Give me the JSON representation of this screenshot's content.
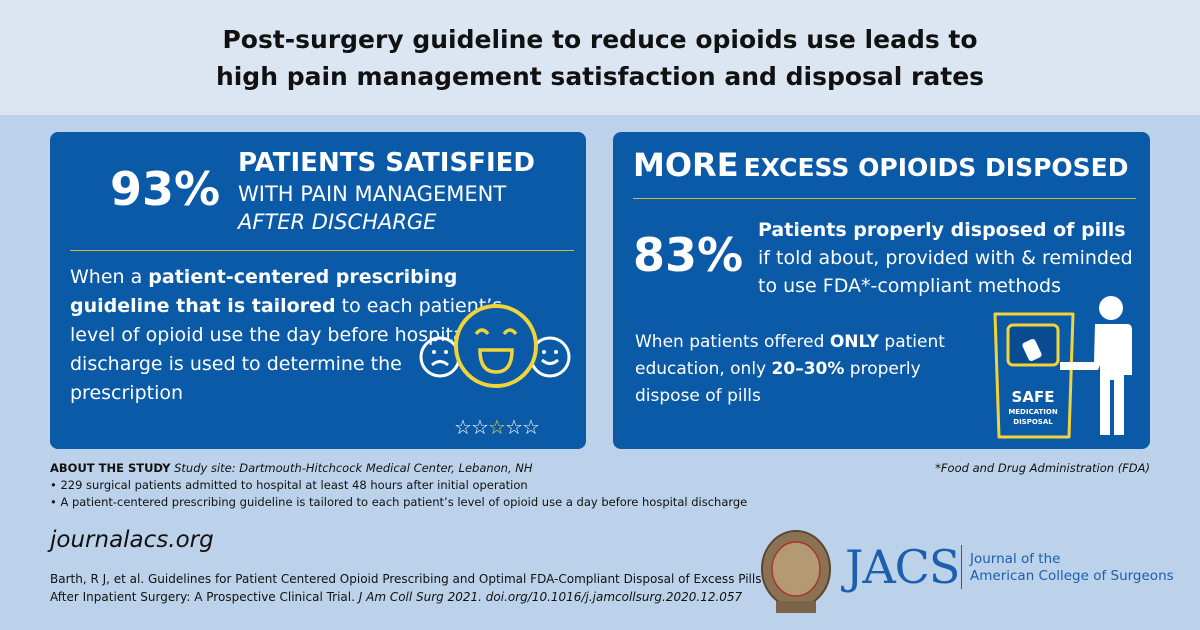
{
  "title": "Post-surgery guideline to reduce opioids use leads to high pain management satisfaction and disposal rates",
  "left_card": {
    "percent": "93%",
    "headline": "PATIENTS SATISFIED",
    "line2": "WITH PAIN MANAGEMENT",
    "line3": "AFTER DISCHARGE",
    "body_pre": "When a ",
    "body_bold": "patient-centered prescribing guideline that is tailored",
    "body_post": " to each patient’s level of opioid use the day before hospital discharge is used to determine the prescription",
    "rating": {
      "stars": 5,
      "highlighted_star": 3
    }
  },
  "right_card": {
    "headline_big": "MORE",
    "headline_rest": "EXCESS OPIOIDS DISPOSED",
    "percent": "83%",
    "sub_bold": "Patients properly disposed of pills",
    "sub_rest": "if told about, provided with & reminded to use FDA*-compliant methods",
    "body_1": "When patients offered ",
    "body_2": "ONLY",
    "body_3": " patient education, only ",
    "body_4": "20–30%",
    "body_5": " properly dispose of pills",
    "bin_line1": "SAFE",
    "bin_line2": "MEDICATION",
    "bin_line3": "DISPOSAL"
  },
  "study": {
    "label": "ABOUT THE STUDY",
    "site": "Study site: Dartmouth-Hitchcock Medical Center, Lebanon, NH",
    "bullets": [
      "• 229 surgical patients admitted to hospital at least 48 hours after initial operation",
      "• A patient-centered prescribing guideline is tailored to each patient’s level of opioid use a day before hospital discharge"
    ],
    "footnote": "*Food and Drug Administration (FDA)"
  },
  "website": "journalacs.org",
  "citation_1": "Barth, R J, et al. Guidelines for Patient Centered Opioid Prescribing and Optimal FDA-Compliant Disposal of Excess Pills",
  "citation_2a": "After Inpatient Surgery: A Prospective Clinical Trial. ",
  "citation_2b": "J Am Coll Surg 2021. doi.org/10.1016/j.jamcollsurg.2020.12.057",
  "logo": {
    "name": "JACS",
    "line1": "Journal of the",
    "line2": "American College of Surgeons"
  },
  "colors": {
    "card": "#0b5aa7",
    "accent": "#f0d43a",
    "background": "#bcd2ea"
  }
}
